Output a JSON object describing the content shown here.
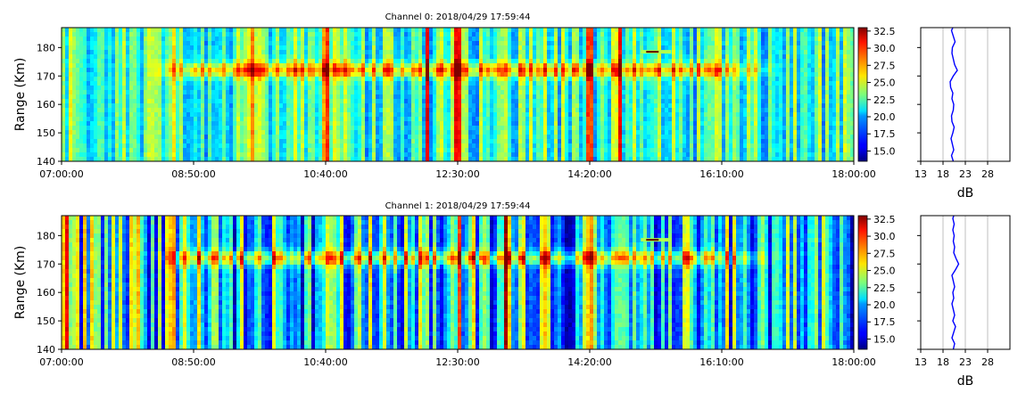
{
  "chart_data": [
    {
      "type": "heatmap",
      "title": "Channel 0: 2018/04/29 17:59:44",
      "ylabel": "Range (Km)",
      "xlim": [
        "07:00:00",
        "18:00:00"
      ],
      "ylim": [
        140,
        187
      ],
      "xticks": [
        "07:00:00",
        "08:50:00",
        "10:40:00",
        "12:30:00",
        "14:20:00",
        "16:10:00",
        "18:00:00"
      ],
      "yticks": [
        140,
        150,
        160,
        170,
        180
      ],
      "colorbar": {
        "min": 13.5,
        "max": 33,
        "ticks": [
          "15.0",
          "17.5",
          "20.0",
          "22.5",
          "25.0",
          "27.5",
          "30.0",
          "32.5"
        ],
        "colormap": "jet"
      },
      "features": {
        "echo_band_range_km": 172,
        "echo_band_start": "08:10:00",
        "echo_band_end": "17:00:00",
        "strong_columns": [
          "09:40:00",
          "10:40:00",
          "12:05:00",
          "12:30:00",
          "13:10:00",
          "14:20:00",
          "14:45:00"
        ],
        "blip": {
          "time": "15:10:00",
          "range_km": 178.5
        }
      },
      "profile": {
        "xlabel": "dB",
        "xlim": [
          13,
          33
        ],
        "xticks": [
          13,
          18,
          23,
          28
        ],
        "range_km": [
          140,
          142,
          144,
          146,
          148,
          150,
          152,
          154,
          156,
          158,
          160,
          162,
          164,
          166,
          168,
          170,
          172,
          174,
          176,
          178,
          180,
          182,
          184,
          186,
          187
        ],
        "db": [
          20.3,
          19.9,
          20.4,
          20.1,
          19.8,
          20.2,
          20.5,
          20.0,
          19.9,
          20.3,
          20.4,
          20.0,
          20.2,
          19.7,
          19.6,
          20.3,
          21.2,
          20.6,
          20.3,
          20.0,
          20.1,
          20.7,
          20.3,
          19.9,
          20.2
        ],
        "color": "#0000ff"
      }
    },
    {
      "type": "heatmap",
      "title": "Channel 1: 2018/04/29 17:59:44",
      "ylabel": "Range (Km)",
      "xlim": [
        "07:00:00",
        "18:00:00"
      ],
      "ylim": [
        140,
        187
      ],
      "xticks": [
        "07:00:00",
        "08:50:00",
        "10:40:00",
        "12:30:00",
        "14:20:00",
        "16:10:00",
        "18:00:00"
      ],
      "yticks": [
        140,
        150,
        160,
        170,
        180
      ],
      "colorbar": {
        "min": 13.5,
        "max": 33,
        "ticks": [
          "15.0",
          "17.5",
          "20.0",
          "22.5",
          "25.0",
          "27.5",
          "30.0",
          "32.5"
        ],
        "colormap": "jet"
      },
      "features": {
        "echo_band_range_km": 172,
        "echo_band_start": "08:10:00",
        "echo_band_end": "17:00:00",
        "strong_columns": [
          "07:05:00",
          "10:40:00",
          "12:05:00",
          "12:30:00",
          "13:10:00",
          "14:20:00",
          "14:45:00"
        ],
        "blip": {
          "time": "15:10:00",
          "range_km": 178.5
        }
      },
      "profile": {
        "xlabel": "dB",
        "xlim": [
          13,
          33
        ],
        "xticks": [
          13,
          18,
          23,
          28
        ],
        "range_km": [
          140,
          142,
          144,
          146,
          148,
          150,
          152,
          154,
          156,
          158,
          160,
          162,
          164,
          166,
          168,
          170,
          172,
          174,
          176,
          178,
          180,
          182,
          184,
          186,
          187
        ],
        "db": [
          20.3,
          20.6,
          20.0,
          20.4,
          20.8,
          20.2,
          20.6,
          20.3,
          20.0,
          20.4,
          20.2,
          20.6,
          20.3,
          20.0,
          20.8,
          21.5,
          20.9,
          20.4,
          20.6,
          20.3,
          20.5,
          20.2,
          20.5,
          20.2,
          20.4
        ],
        "color": "#0000ff"
      }
    }
  ]
}
